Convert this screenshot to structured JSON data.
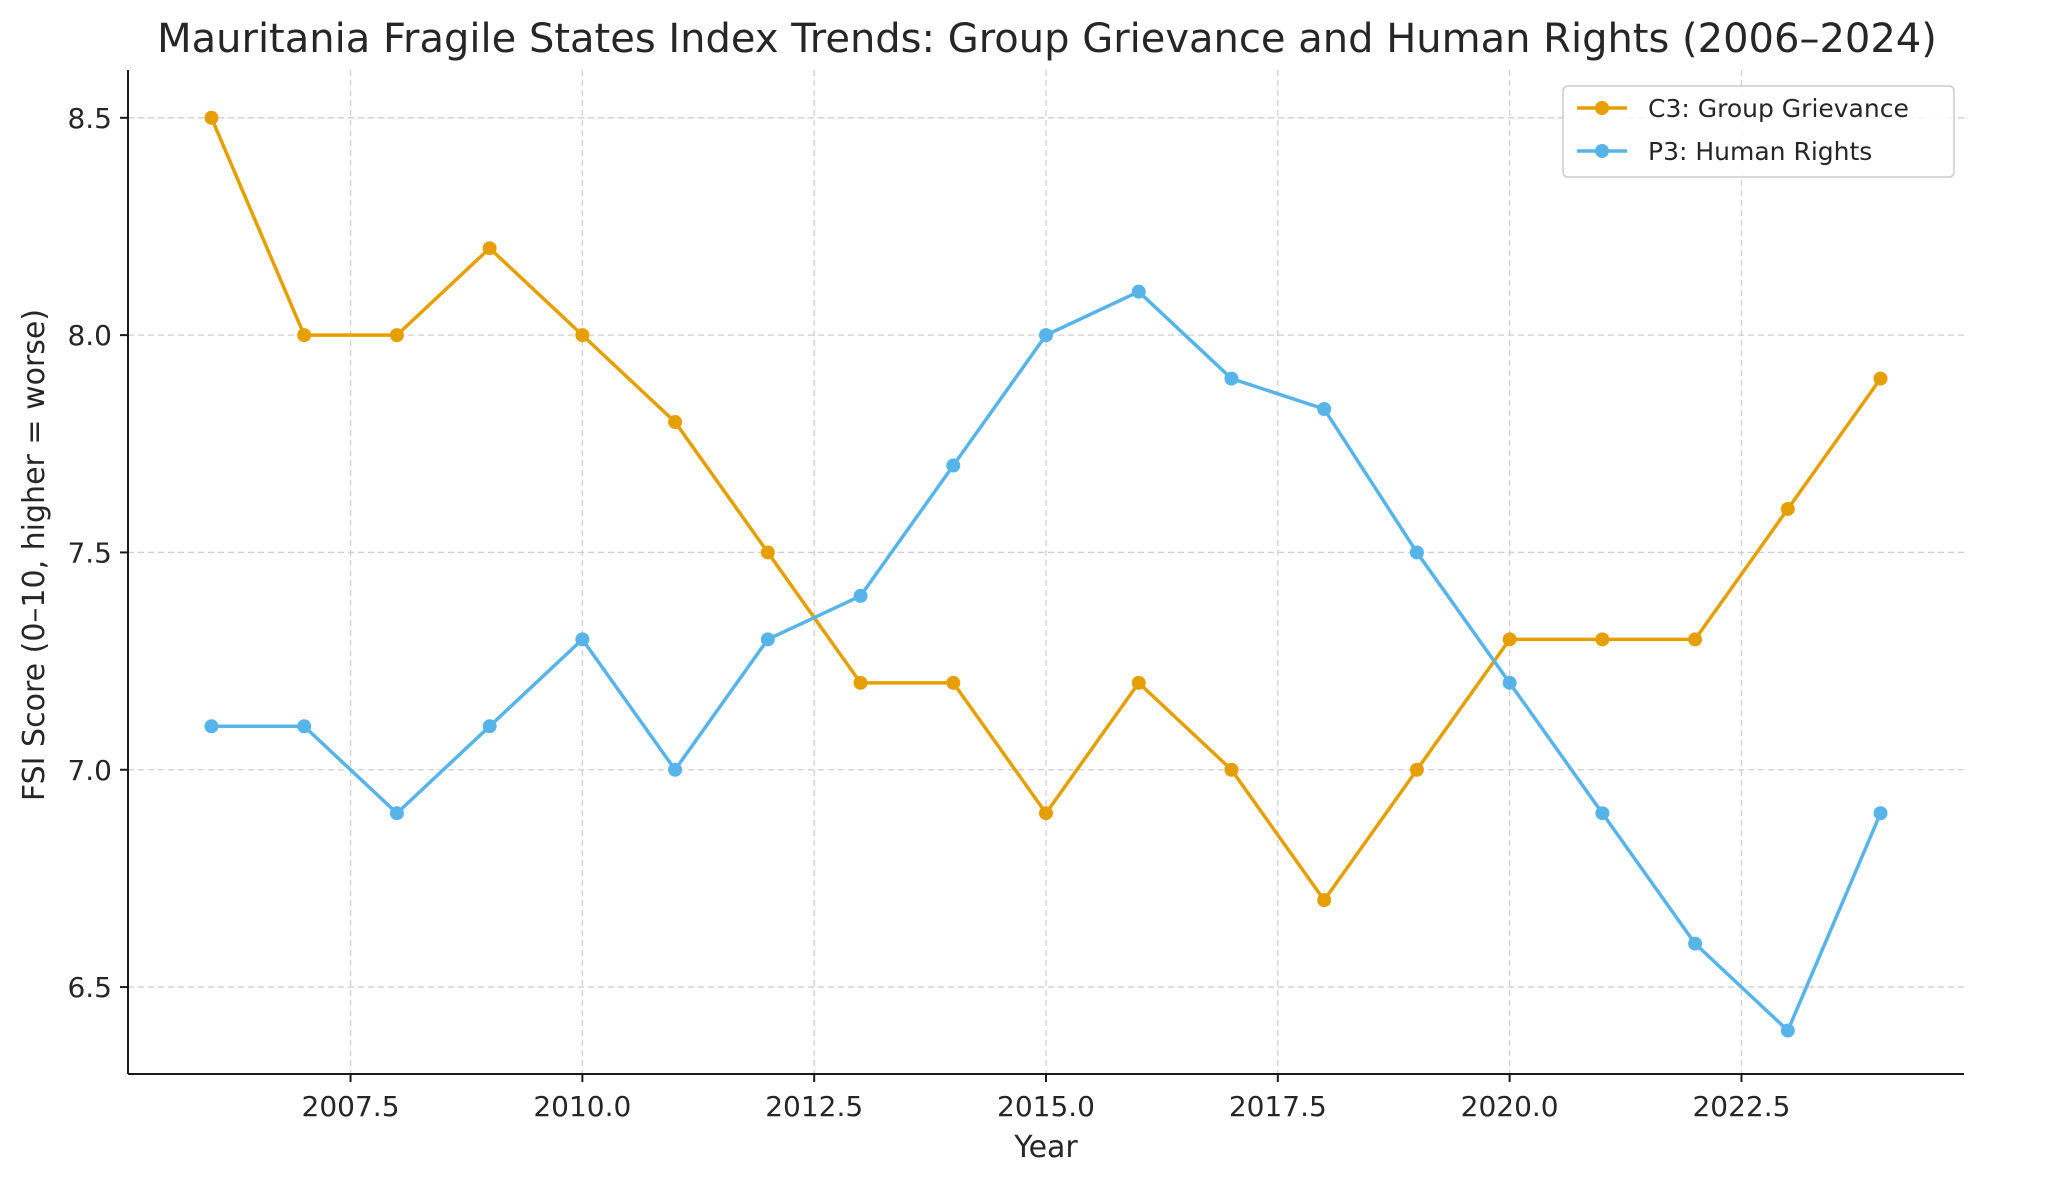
{
  "chart_data": {
    "type": "line",
    "title": "Mauritania Fragile States Index Trends: Group Grievance and Human Rights (2006–2024)",
    "xlabel": "Year",
    "ylabel": "FSI Score (0–10, higher = worse)",
    "x": [
      2006,
      2007,
      2008,
      2009,
      2010,
      2011,
      2012,
      2013,
      2014,
      2015,
      2016,
      2017,
      2018,
      2019,
      2020,
      2021,
      2022,
      2023,
      2024
    ],
    "series": [
      {
        "name": "C3: Group Grievance",
        "color": "#E69F00",
        "values": [
          8.5,
          8.0,
          8.0,
          8.2,
          8.0,
          7.8,
          7.5,
          7.2,
          7.2,
          6.9,
          7.2,
          7.0,
          6.7,
          7.0,
          7.3,
          7.3,
          7.3,
          7.6,
          7.9
        ]
      },
      {
        "name": "P3: Human Rights",
        "color": "#56B4E9",
        "values": [
          7.1,
          7.1,
          6.9,
          7.1,
          7.3,
          7.0,
          7.3,
          7.4,
          7.7,
          8.0,
          8.1,
          7.9,
          7.83,
          7.5,
          7.2,
          6.9,
          6.6,
          6.4,
          6.9
        ]
      }
    ],
    "xlim": [
      2005.1,
      2024.9
    ],
    "ylim": [
      6.3,
      8.61
    ],
    "xticks": [
      2007.5,
      2010.0,
      2012.5,
      2015.0,
      2017.5,
      2020.0,
      2022.5
    ],
    "xtick_labels": [
      "2007.5",
      "2010.0",
      "2012.5",
      "2015.0",
      "2017.5",
      "2020.0",
      "2022.5"
    ],
    "yticks": [
      6.5,
      7.0,
      7.5,
      8.0,
      8.5
    ],
    "ytick_labels": [
      "6.5",
      "7.0",
      "7.5",
      "8.0",
      "8.5"
    ],
    "grid": true,
    "legend_position": "top-right"
  }
}
